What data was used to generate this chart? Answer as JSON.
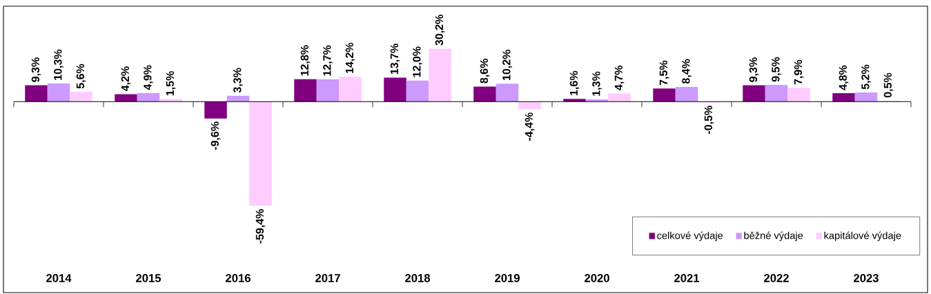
{
  "chart_data": {
    "type": "bar",
    "categories": [
      "2014",
      "2015",
      "2016",
      "2017",
      "2018",
      "2019",
      "2020",
      "2021",
      "2022",
      "2023"
    ],
    "series": [
      {
        "name": "celkové výdaje",
        "color": "#800080",
        "values": [
          9.3,
          4.2,
          -9.6,
          12.8,
          13.7,
          8.6,
          1.6,
          7.5,
          9.3,
          4.8
        ],
        "value_labels": [
          "9,3%",
          "4,2%",
          "-9,6%",
          "12,8%",
          "13,7%",
          "8,6%",
          "1,6%",
          "7,5%",
          "9,3%",
          "4,8%"
        ]
      },
      {
        "name": "běžné výdaje",
        "color": "#cc99ff",
        "values": [
          10.3,
          4.9,
          3.3,
          12.7,
          12.0,
          10.2,
          1.3,
          8.4,
          9.5,
          5.2
        ],
        "value_labels": [
          "10,3%",
          "4,9%",
          "3,3%",
          "12,7%",
          "12,0%",
          "10,2%",
          "1,3%",
          "8,4%",
          "9,5%",
          "5,2%"
        ]
      },
      {
        "name": "kapitálové výdaje",
        "color": "#ffccff",
        "values": [
          5.6,
          1.5,
          -59.4,
          14.2,
          30.2,
          -4.4,
          4.7,
          -0.5,
          7.9,
          0.5
        ],
        "value_labels": [
          "5,6%",
          "1,5%",
          "-59,4%",
          "14,2%",
          "30,2%",
          "-4,4%",
          "4,7%",
          "-0,5%",
          "7,9%",
          "0,5%"
        ]
      }
    ],
    "legend": "bottom right"
  }
}
